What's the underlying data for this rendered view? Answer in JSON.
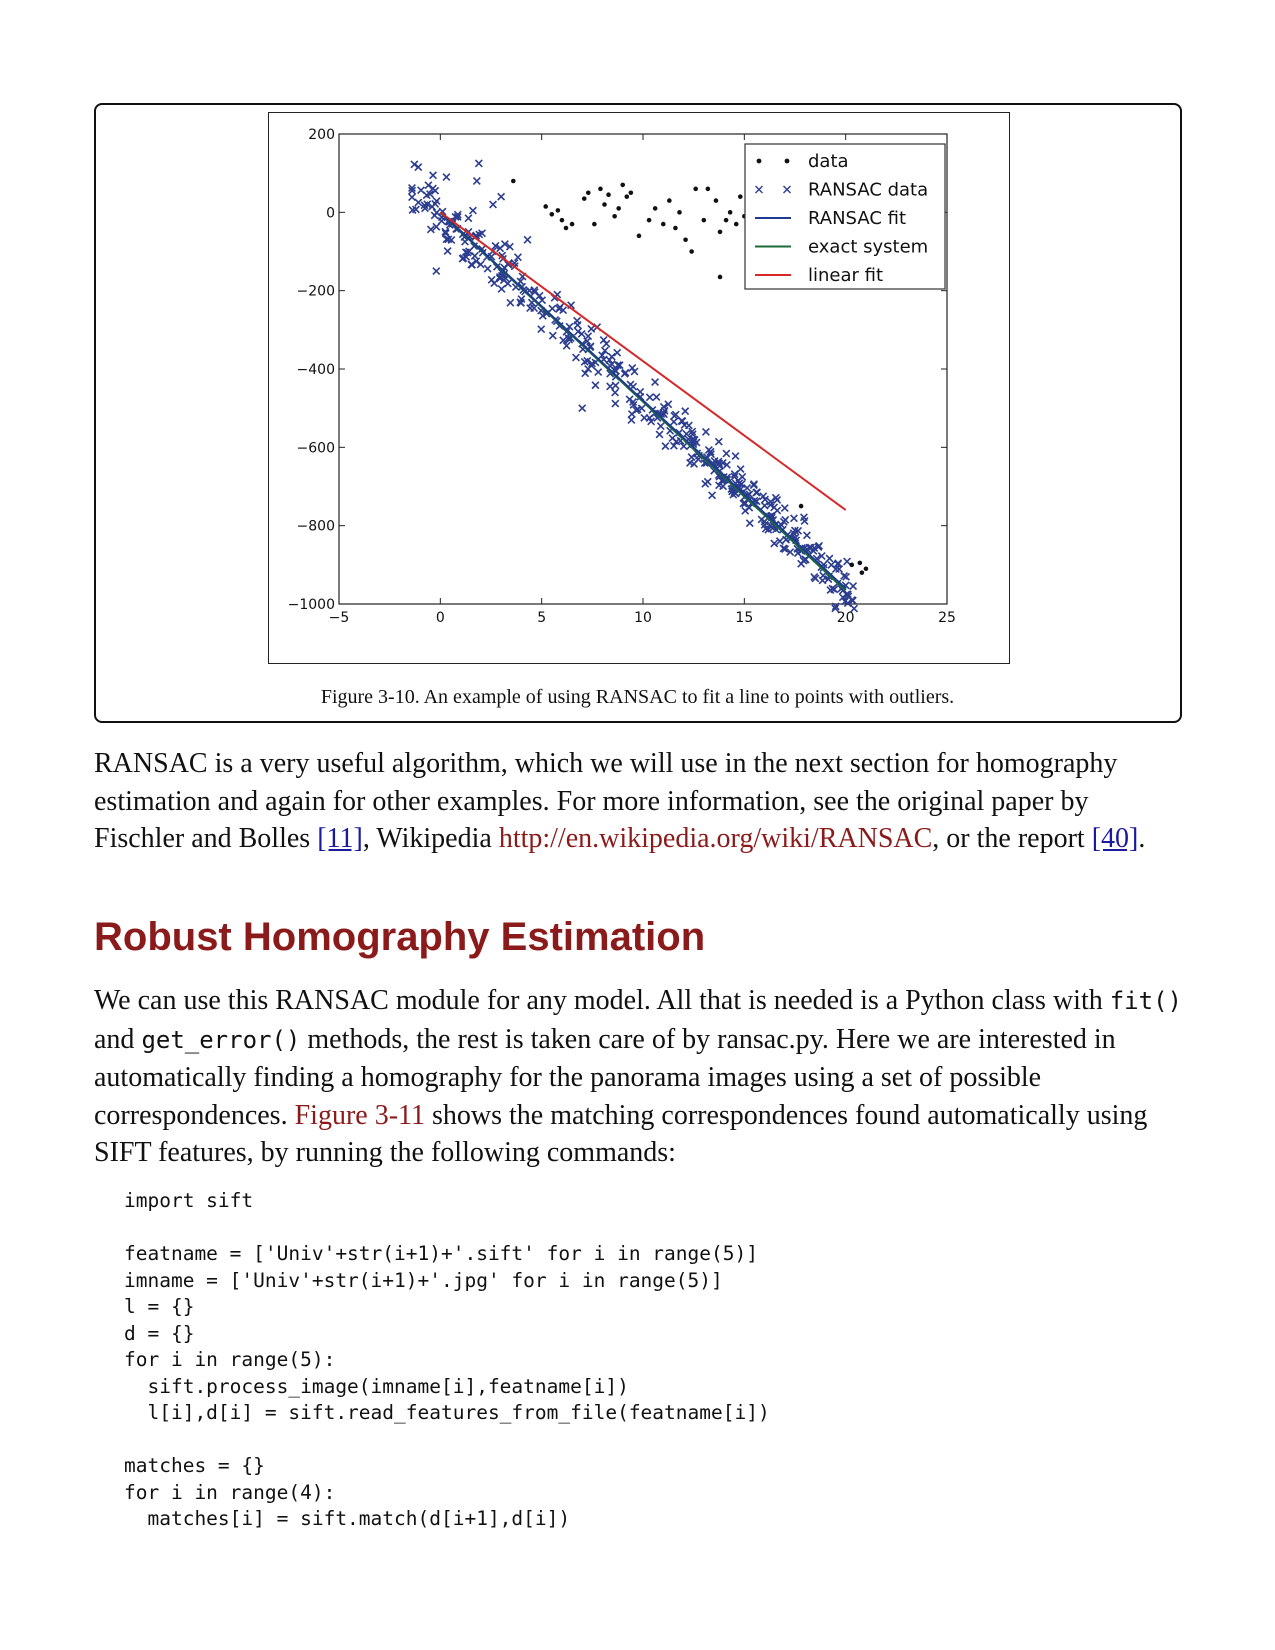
{
  "chart_data": {
    "type": "scatter",
    "xlim": [
      -5,
      25
    ],
    "ylim": [
      -1000,
      200
    ],
    "xticks": [
      "−5",
      "0",
      "5",
      "10",
      "15",
      "20",
      "25"
    ],
    "yticks": [
      "200",
      "0",
      "−200",
      "−400",
      "−600",
      "−800",
      "−1000"
    ],
    "legend": {
      "placement": "top-right",
      "entries": [
        "data",
        "RANSAC data",
        "RANSAC fit",
        "exact system",
        "linear fit"
      ]
    },
    "colors": {
      "data": "#111111",
      "ransac_data": "#2c3d8f",
      "ransac_fit": "#1f3a93",
      "exact_system": "#1b6b3a",
      "linear_fit": "#d62828"
    },
    "outliers": [
      [
        3.6,
        80
      ],
      [
        5.2,
        15
      ],
      [
        5.5,
        -5
      ],
      [
        5.8,
        5
      ],
      [
        6.0,
        -20
      ],
      [
        6.2,
        -40
      ],
      [
        6.5,
        -30
      ],
      [
        7.1,
        35
      ],
      [
        7.3,
        50
      ],
      [
        7.6,
        -30
      ],
      [
        7.9,
        60
      ],
      [
        8.1,
        20
      ],
      [
        8.3,
        45
      ],
      [
        8.6,
        -10
      ],
      [
        8.8,
        10
      ],
      [
        9.0,
        70
      ],
      [
        9.2,
        40
      ],
      [
        9.4,
        50
      ],
      [
        9.8,
        -60
      ],
      [
        10.3,
        -20
      ],
      [
        10.6,
        10
      ],
      [
        11.0,
        -30
      ],
      [
        11.3,
        30
      ],
      [
        11.6,
        -40
      ],
      [
        11.8,
        0
      ],
      [
        12.1,
        -70
      ],
      [
        12.4,
        -100
      ],
      [
        12.6,
        60
      ],
      [
        13.0,
        -20
      ],
      [
        13.2,
        60
      ],
      [
        13.6,
        30
      ],
      [
        13.8,
        -50
      ],
      [
        14.1,
        -20
      ],
      [
        14.3,
        0
      ],
      [
        14.6,
        -30
      ],
      [
        14.8,
        40
      ],
      [
        15.0,
        -10
      ],
      [
        13.8,
        -165
      ],
      [
        17.8,
        -750
      ],
      [
        20.3,
        -900
      ],
      [
        20.8,
        -920
      ],
      [
        21.0,
        -910
      ],
      [
        20.7,
        -895
      ]
    ],
    "ransac_fit": {
      "x": [
        0,
        20
      ],
      "y": [
        0,
        -960
      ]
    },
    "exact_system": {
      "x": [
        0,
        20
      ],
      "y": [
        0,
        -965
      ]
    },
    "linear_fit": {
      "x": [
        0,
        20
      ],
      "y": [
        0,
        -760
      ]
    },
    "ransac_data_model": {
      "x_range": [
        -1.4,
        20.5
      ],
      "slope": -48,
      "noise": 45,
      "count": 420
    }
  },
  "figure": {
    "caption": "Figure 3-10. An example of using RANSAC to fit a line to points with outliers."
  },
  "p1": {
    "t1": "RANSAC is a very useful algorithm, which we will use in the next section for homography estimation and again for other examples. For more information, see the original paper by Fischler and Bolles ",
    "ref1": "[11]",
    "t2": ", Wikipedia ",
    "url": "http://en.wikipedia.org/wiki/RANSAC",
    "t3": ", or the report ",
    "ref2": "[40]",
    "t4": "."
  },
  "heading": "Robust Homography Estimation",
  "p2": {
    "t1": "We can use this RANSAC module for any model. All that is needed is a Python class with ",
    "c1": "fit()",
    "t2": " and ",
    "c2": "get_error()",
    "t3": " methods, the rest is taken care of by ransac.py. Here we are interested in automatically finding a homography for the panorama images using a set of possible correspondences. ",
    "figref": "Figure 3-11",
    "t4": " shows the matching correspondences found automatically using SIFT features, by running the following commands:"
  },
  "code": "import sift\n\nfeatname = ['Univ'+str(i+1)+'.sift' for i in range(5)]\nimname = ['Univ'+str(i+1)+'.jpg' for i in range(5)]\nl = {}\nd = {}\nfor i in range(5):\n  sift.process_image(imname[i],featname[i])\n  l[i],d[i] = sift.read_features_from_file(featname[i])\n\nmatches = {}\nfor i in range(4):\n  matches[i] = sift.match(d[i+1],d[i])"
}
